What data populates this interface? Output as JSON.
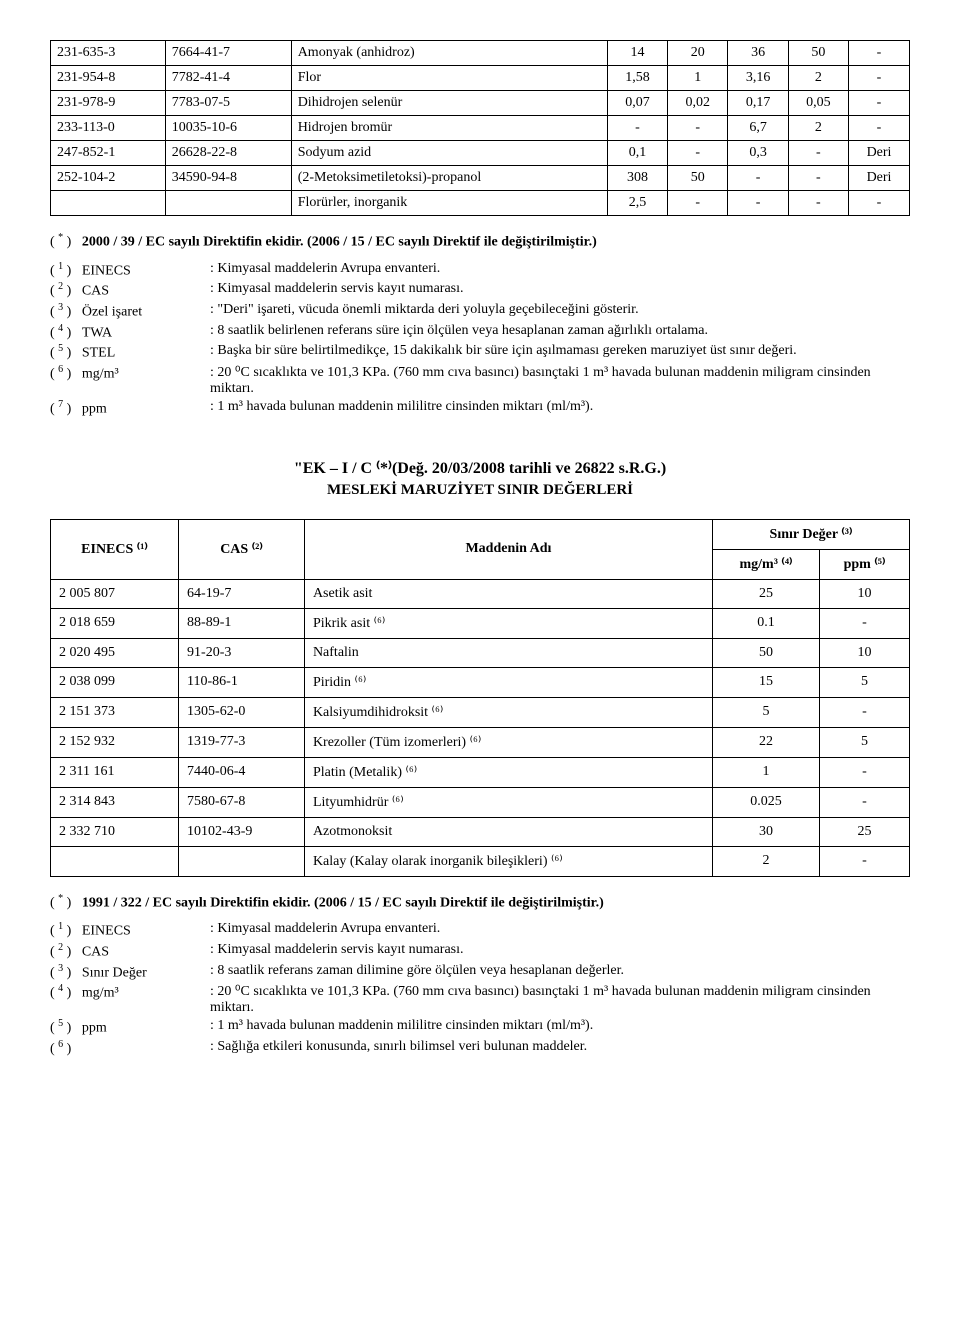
{
  "table1": {
    "rows": [
      {
        "c1": "231-635-3",
        "c2": "7664-41-7",
        "c3": "Amonyak (anhidroz)",
        "c4": "14",
        "c5": "20",
        "c6": "36",
        "c7": "50",
        "c8": "-"
      },
      {
        "c1": "231-954-8",
        "c2": "7782-41-4",
        "c3": "Flor",
        "c4": "1,58",
        "c5": "1",
        "c6": "3,16",
        "c7": "2",
        "c8": "-"
      },
      {
        "c1": "231-978-9",
        "c2": "7783-07-5",
        "c3": "Dihidrojen selenür",
        "c4": "0,07",
        "c5": "0,02",
        "c6": "0,17",
        "c7": "0,05",
        "c8": "-"
      },
      {
        "c1": "233-113-0",
        "c2": "10035-10-6",
        "c3": "Hidrojen bromür",
        "c4": "-",
        "c5": "-",
        "c6": "6,7",
        "c7": "2",
        "c8": "-"
      },
      {
        "c1": "247-852-1",
        "c2": "26628-22-8",
        "c3": "Sodyum azid",
        "c4": "0,1",
        "c5": "-",
        "c6": "0,3",
        "c7": "-",
        "c8": "Deri"
      },
      {
        "c1": "252-104-2",
        "c2": "34590-94-8",
        "c3": "(2-Metoksimetiletoksi)-propanol",
        "c4": "308",
        "c5": "50",
        "c6": "-",
        "c7": "-",
        "c8": "Deri"
      },
      {
        "c1": "",
        "c2": "",
        "c3": "Florürler, inorganik",
        "c4": "2,5",
        "c5": "-",
        "c6": "-",
        "c7": "-",
        "c8": "-"
      }
    ]
  },
  "note1": "2000 / 39 / EC sayılı Direktifin ekidir. (2006 / 15 / EC sayılı Direktif ile değiştirilmiştir.)",
  "defs1": [
    {
      "k": "EINECS",
      "v": "Kimyasal maddelerin Avrupa envanteri."
    },
    {
      "k": "CAS",
      "v": "Kimyasal maddelerin servis kayıt numarası."
    },
    {
      "k": "Özel işaret",
      "v": "\"Deri\" işareti, vücuda önemli miktarda deri yoluyla geçebileceğini gösterir."
    },
    {
      "k": "TWA",
      "v": "8 saatlik belirlenen referans süre için ölçülen veya hesaplanan zaman ağırlıklı ortalama."
    },
    {
      "k": "STEL",
      "v": "Başka bir süre belirtilmedikçe, 15 dakikalık bir süre için aşılmaması gereken maruziyet üst sınır değeri."
    },
    {
      "k": "mg/m³",
      "v": "20 ⁰C sıcaklıkta ve 101,3 KPa. (760 mm cıva basıncı) basınçtaki 1 m³ havada bulunan maddenin miligram cinsinden miktarı."
    },
    {
      "k": "ppm",
      "v": "1 m³ havada bulunan maddenin mililitre cinsinden miktarı (ml/m³)."
    }
  ],
  "title2_a": "\"EK – I / C ⁽*⁾(Değ. 20/03/2008 tarihli ve 26822 s.R.G.)",
  "title2_b": "MESLEKİ MARUZİYET SINIR DEĞERLERİ",
  "table2": {
    "h1": "EINECS ⁽¹⁾",
    "h2": "CAS ⁽²⁾",
    "h3": "Maddenin Adı",
    "h4": "Sınır Değer ⁽³⁾",
    "h5": "mg/m³ ⁽⁴⁾",
    "h6": "ppm ⁽⁵⁾",
    "rows": [
      {
        "c1": "2 005 807",
        "c2": "64-19-7",
        "c3": "Asetik asit",
        "c4": "25",
        "c5": "10"
      },
      {
        "c1": "2 018 659",
        "c2": "88-89-1",
        "c3": "Pikrik asit ⁽⁶⁾",
        "c4": "0.1",
        "c5": "-"
      },
      {
        "c1": "2 020 495",
        "c2": "91-20-3",
        "c3": "Naftalin",
        "c4": "50",
        "c5": "10"
      },
      {
        "c1": "2 038 099",
        "c2": "110-86-1",
        "c3": "Piridin ⁽⁶⁾",
        "c4": "15",
        "c5": "5"
      },
      {
        "c1": "2 151 373",
        "c2": "1305-62-0",
        "c3": "Kalsiyumdihidroksit ⁽⁶⁾",
        "c4": "5",
        "c5": "-"
      },
      {
        "c1": "2 152 932",
        "c2": "1319-77-3",
        "c3": "Krezoller (Tüm izomerleri) ⁽⁶⁾",
        "c4": "22",
        "c5": "5"
      },
      {
        "c1": "2 311 161",
        "c2": "7440-06-4",
        "c3": "Platin (Metalik) ⁽⁶⁾",
        "c4": "1",
        "c5": "-"
      },
      {
        "c1": "2 314 843",
        "c2": "7580-67-8",
        "c3": "Lityumhidrür ⁽⁶⁾",
        "c4": "0.025",
        "c5": "-"
      },
      {
        "c1": "2 332 710",
        "c2": "10102-43-9",
        "c3": "Azotmonoksit",
        "c4": "30",
        "c5": "25"
      },
      {
        "c1": "",
        "c2": "",
        "c3": "Kalay (Kalay olarak inorganik bileşikleri) ⁽⁶⁾",
        "c4": "2",
        "c5": "-"
      }
    ]
  },
  "note2": "1991 / 322 / EC sayılı Direktifin ekidir. (2006 / 15 / EC sayılı Direktif ile değiştirilmiştir.)",
  "defs2": [
    {
      "k": "EINECS",
      "v": "Kimyasal maddelerin Avrupa envanteri."
    },
    {
      "k": "CAS",
      "v": "Kimyasal maddelerin servis kayıt numarası."
    },
    {
      "k": "Sınır Değer",
      "v": "8 saatlik referans zaman dilimine göre ölçülen veya hesaplanan değerler."
    },
    {
      "k": "mg/m³",
      "v": "20 ⁰C  sıcaklıkta ve 101,3 KPa. (760 mm cıva basıncı) basınçtaki 1 m³ havada bulunan maddenin miligram cinsinden miktarı."
    },
    {
      "k": "ppm",
      "v": "1 m³  havada bulunan maddenin mililitre cinsinden miktarı (ml/m³)."
    },
    {
      "k": "",
      "v": "Sağlığa etkileri konusunda, sınırlı bilimsel veri bulunan maddeler."
    }
  ]
}
